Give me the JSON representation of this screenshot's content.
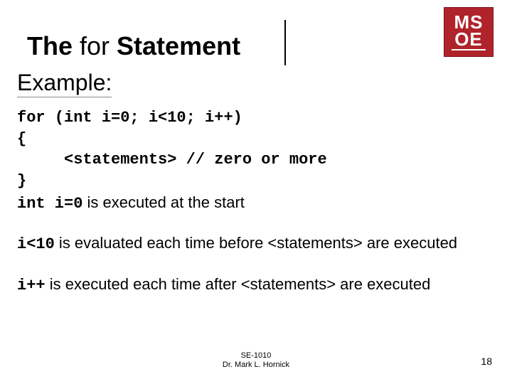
{
  "logo": {
    "line1": "MS",
    "line2": "OE",
    "bg_color": "#b0232a",
    "text_color": "#ffffff"
  },
  "title": {
    "part1": "The ",
    "part2_normal": "for ",
    "part3": "Statement"
  },
  "example_label": "Example:",
  "code": {
    "l1": "for (int i=0; i<10; i++)",
    "l2": "{",
    "l3": "     <statements> // zero or more",
    "l4": "}"
  },
  "explain1": {
    "mono": "int i=0",
    "text": " is executed at the start"
  },
  "explain2": {
    "mono": "i<10",
    "text": " is evaluated each time before <statements> are executed"
  },
  "explain3": {
    "mono": "i++",
    "text": "  is executed each time after <statements> are executed"
  },
  "footer": {
    "course": "SE-1010",
    "author": "Dr. Mark L. Hornick"
  },
  "page_number": "18",
  "colors": {
    "background": "#ffffff",
    "text": "#000000",
    "divider": "#000000",
    "underline": "#888888"
  },
  "typography": {
    "title_fontsize": 36,
    "body_fontsize": 22,
    "example_fontsize": 32,
    "footer_fontsize": 11,
    "code_font": "Courier New"
  }
}
